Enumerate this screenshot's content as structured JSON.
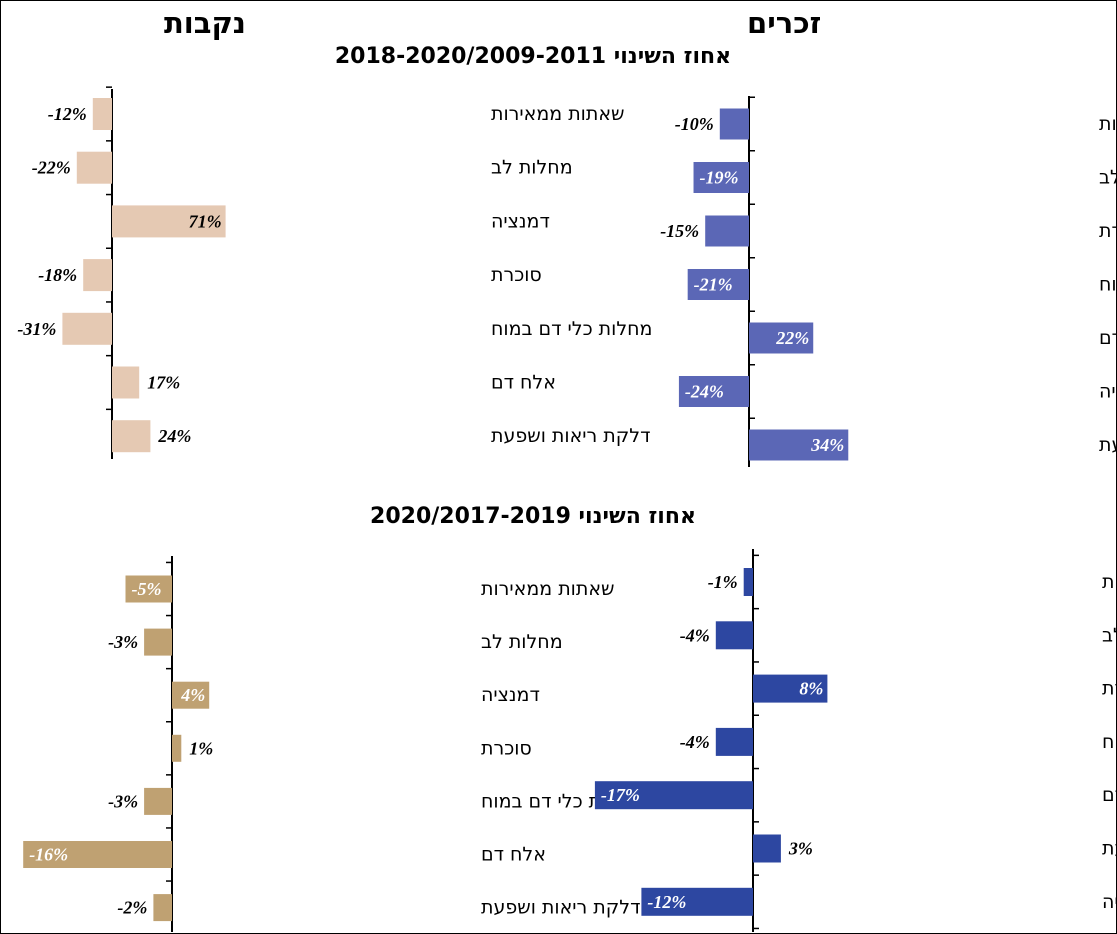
{
  "headers": {
    "male": "זכרים",
    "female": "נקבות",
    "section1": "אחוז השינוי 2018-2020/2009-2011",
    "section2": "אחוז השינוי 2020/2017-2019"
  },
  "colors": {
    "female_2011": "#e5c9b3",
    "male_2011": "#5b67b6",
    "female_2019": "#bfa172",
    "male_2019": "#2d47a1"
  },
  "chart_data": [
    {
      "type": "bar",
      "orientation": "horizontal",
      "panel": "female",
      "period": "2018-2020/2009-2011",
      "title": "",
      "categories": [
        "שאתות ממאירות",
        "מחלות לב",
        "דמנציה",
        "סוכרת",
        "מחלות כלי דם במוח",
        "אלח דם",
        "דלקת ריאות ושפעת"
      ],
      "values": [
        -12,
        -22,
        71,
        -18,
        -31,
        17,
        24
      ],
      "unit": "%",
      "color": "#e5c9b3"
    },
    {
      "type": "bar",
      "orientation": "horizontal",
      "panel": "male",
      "period": "2018-2020/2009-2011",
      "title": "",
      "categories": [
        "שאתות ממאירות",
        "מחלות לב",
        "סוכרת",
        "מחלות כלי דם במוח",
        "אלח דם",
        "מחלות כליה",
        "דלקת ריאות ושפעת"
      ],
      "values": [
        -10,
        -19,
        -15,
        -21,
        22,
        -24,
        34
      ],
      "unit": "%",
      "color": "#5b67b6"
    },
    {
      "type": "bar",
      "orientation": "horizontal",
      "panel": "female",
      "period": "2020/2017-2019",
      "title": "",
      "categories": [
        "שאתות ממאירות",
        "מחלות לב",
        "דמנציה",
        "סוכרת",
        "מחלות כלי דם במוח",
        "אלח דם",
        "דלקת ריאות ושפעת"
      ],
      "values": [
        -5,
        -3,
        4,
        1,
        -3,
        -16,
        -2
      ],
      "unit": "%",
      "color": "#bfa172"
    },
    {
      "type": "bar",
      "orientation": "horizontal",
      "panel": "male",
      "period": "2020/2017-2019",
      "title": "",
      "categories": [
        "שאתות ממאירות",
        "מחלות לב",
        "סוכרת",
        "מחלות כלי דם במוח",
        "אלח דם",
        "דלקת ריאות ושפעת",
        "מחלות כליה"
      ],
      "values": [
        -1,
        -4,
        8,
        -4,
        -17,
        3,
        -12
      ],
      "unit": "%",
      "color": "#2d47a1"
    }
  ]
}
